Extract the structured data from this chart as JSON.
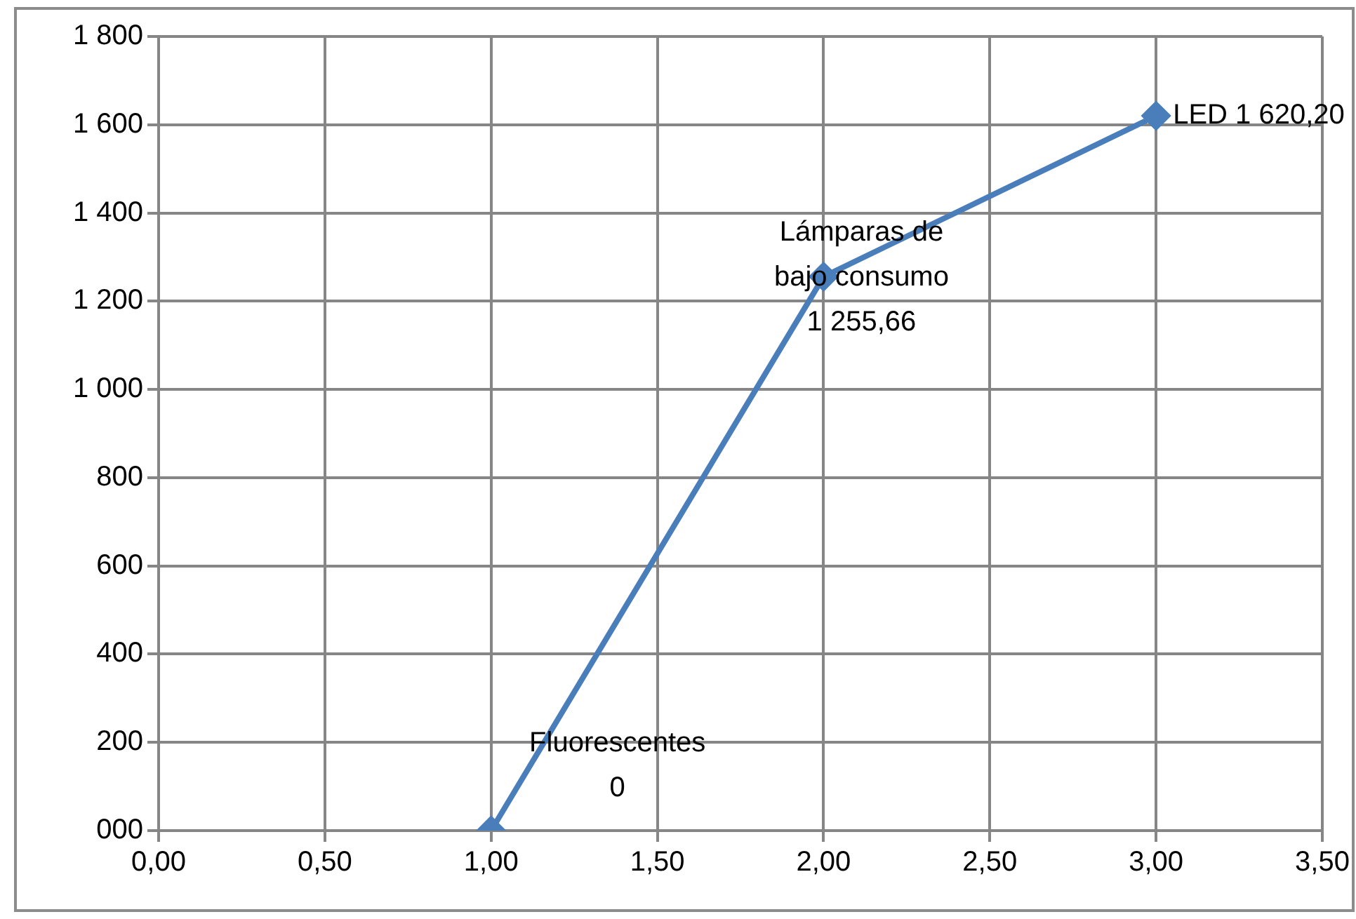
{
  "chart_data": {
    "type": "line",
    "x": [
      1,
      2,
      3
    ],
    "series": [
      {
        "color": "#4a7ebb",
        "values": [
          0,
          1255.66,
          1620.2
        ]
      }
    ],
    "xlim": [
      0,
      3.5
    ],
    "xticks": [
      {
        "value": 0,
        "label": "0,00"
      },
      {
        "value": 0.5,
        "label": "0,50"
      },
      {
        "value": 1,
        "label": "1,00"
      },
      {
        "value": 1.5,
        "label": "1,50"
      },
      {
        "value": 2,
        "label": "2,00"
      },
      {
        "value": 2.5,
        "label": "2,50"
      },
      {
        "value": 3,
        "label": "3,00"
      },
      {
        "value": 3.5,
        "label": "3,50"
      }
    ],
    "ylim": [
      0,
      1800
    ],
    "yticks": [
      {
        "value": 0,
        "label": "000"
      },
      {
        "value": 200,
        "label": "200"
      },
      {
        "value": 400,
        "label": "400"
      },
      {
        "value": 600,
        "label": "600"
      },
      {
        "value": 800,
        "label": "800"
      },
      {
        "value": 1000,
        "label": "1 000"
      },
      {
        "value": 1200,
        "label": "1 200"
      },
      {
        "value": 1400,
        "label": "1 400"
      },
      {
        "value": 1600,
        "label": "1 600"
      },
      {
        "value": 1800,
        "label": "1 800"
      }
    ],
    "grid": true,
    "marker": "diamond",
    "line_style": "solid",
    "legend": false,
    "annotations": [
      {
        "text": "Fluorescentes\n0",
        "x": 1,
        "y": 0
      },
      {
        "text": "Lámparas de\nbajo consumo\n1 255,66",
        "x": 2,
        "y": 1255.66
      },
      {
        "text": "LED 1 620,20",
        "x": 3,
        "y": 1620.2
      }
    ]
  }
}
